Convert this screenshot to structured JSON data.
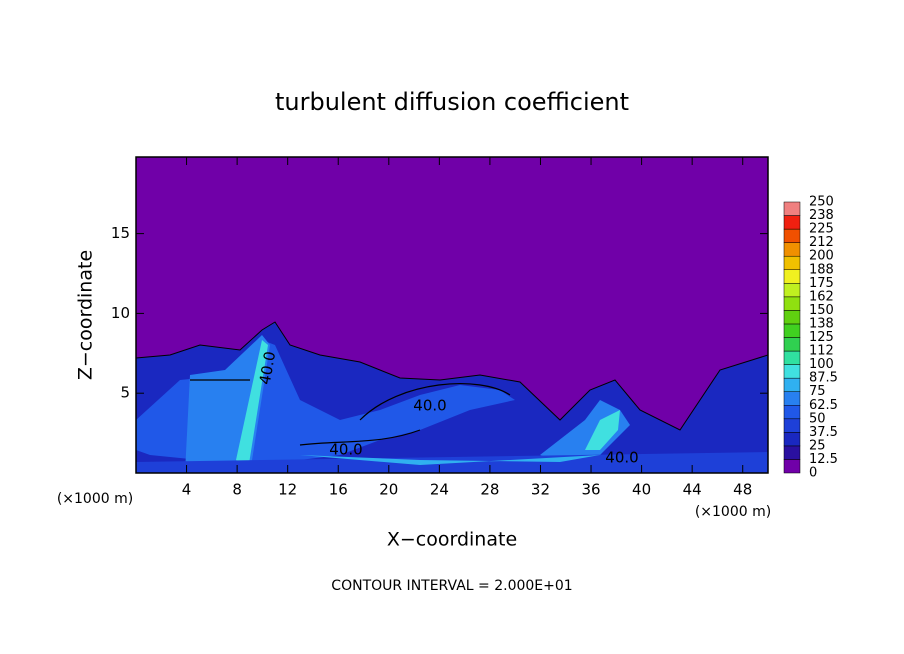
{
  "chart_data": {
    "type": "contour",
    "title": "turbulent diffusion coefficient",
    "x_label": "X−coordinate",
    "y_label": "Z−coordinate",
    "x_unit": "(×1000 m)",
    "x_unit_right": "(×1000 m)",
    "footer": "CONTOUR INTERVAL = 2.000E+01",
    "xlim": [
      0,
      50
    ],
    "ylim": [
      0,
      19.8
    ],
    "xticks": [
      4,
      8,
      12,
      16,
      20,
      24,
      28,
      32,
      36,
      40,
      44,
      48
    ],
    "yticks": [
      5,
      10,
      15
    ],
    "colorbar_levels": [
      0,
      12.5,
      25,
      37.5,
      50,
      62.5,
      75,
      87.5,
      100,
      112,
      125,
      138,
      150,
      162,
      175,
      188,
      200,
      212,
      225,
      238,
      250
    ],
    "colorbar_colors": [
      "#7000a8",
      "#2a10a0",
      "#1a28c0",
      "#1e40d8",
      "#2058e8",
      "#2880f0",
      "#30b0f0",
      "#40e0e0",
      "#30e0a0",
      "#30d050",
      "#40d020",
      "#60d010",
      "#90e010",
      "#c0f020",
      "#f0f020",
      "#f0c000",
      "#f09000",
      "#f05000",
      "#f02010",
      "#f08080"
    ],
    "contour_labels": [
      "40.0",
      "40.0",
      "40.0",
      "40.0"
    ]
  }
}
